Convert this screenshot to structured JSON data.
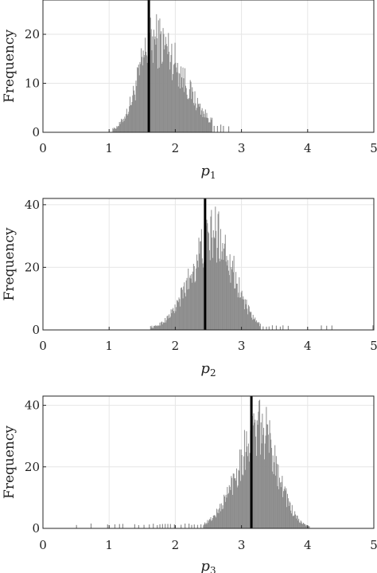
{
  "figure": {
    "background": "#ffffff",
    "bar_color": "#8c8c8c",
    "line_color": "#000000",
    "grid_color": "#e6e6e6"
  },
  "chart_data": [
    {
      "type": "bar",
      "subtype": "histogram",
      "xlabel_var": "p",
      "xlabel_sub": "1",
      "ylabel": "Frequency",
      "xlim": [
        0,
        5
      ],
      "ylim": [
        0,
        27
      ],
      "xticks": [
        0,
        1,
        2,
        3,
        4,
        5
      ],
      "yticks": [
        0,
        10,
        20
      ],
      "grid": true,
      "dist": {
        "mean": 1.68,
        "sd": 0.24,
        "skew": 0.85,
        "peak": 21,
        "lo": 1.05,
        "hi": 2.55
      },
      "tail_bins": [
        2.58,
        2.63,
        2.68,
        2.72,
        2.8
      ],
      "vline": 1.6
    },
    {
      "type": "bar",
      "subtype": "histogram",
      "xlabel_var": "p",
      "xlabel_sub": "2",
      "ylabel": "Frequency",
      "xlim": [
        0,
        5
      ],
      "ylim": [
        0,
        42
      ],
      "xticks": [
        0,
        1,
        2,
        3,
        4,
        5
      ],
      "yticks": [
        0,
        20,
        40
      ],
      "grid": true,
      "dist": {
        "mean": 2.6,
        "sd": 0.28,
        "skew": -0.3,
        "peak": 34,
        "lo": 1.62,
        "hi": 3.28
      },
      "tail_bins": [
        3.32,
        3.37,
        3.41,
        3.46,
        3.52,
        3.58,
        3.62,
        3.7,
        4.2,
        4.28,
        4.36,
        4.98
      ],
      "vline": 2.45
    },
    {
      "type": "bar",
      "subtype": "histogram",
      "xlabel_var": "p",
      "xlabel_sub": "3",
      "ylabel": "Frequency",
      "xlim": [
        0,
        5
      ],
      "ylim": [
        0,
        43
      ],
      "xticks": [
        0,
        1,
        2,
        3,
        4,
        5
      ],
      "yticks": [
        0,
        20,
        40
      ],
      "grid": true,
      "dist": {
        "mean": 3.28,
        "sd": 0.26,
        "skew": -0.35,
        "peak": 36,
        "lo": 2.42,
        "hi": 4.02
      },
      "tail_bins": [
        0.5,
        0.72,
        0.97,
        1.08,
        1.15,
        1.2,
        1.38,
        1.44,
        1.52,
        1.6,
        1.66,
        1.72,
        1.76,
        1.8,
        1.84,
        1.88,
        1.92,
        1.98,
        2.08,
        2.14,
        2.2,
        2.24,
        2.28,
        2.33,
        2.38
      ],
      "vline": 3.15
    }
  ]
}
